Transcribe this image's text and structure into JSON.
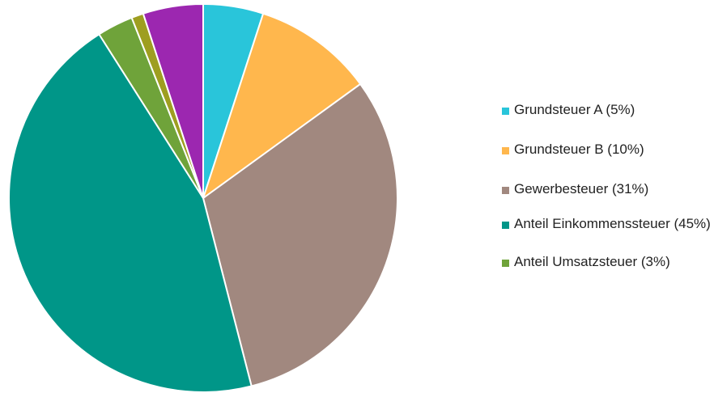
{
  "chart_data": {
    "type": "pie",
    "title": "",
    "slices": [
      {
        "label": "Grundsteuer A (5%)",
        "value": 5,
        "color": "#29C5DA",
        "in_legend": true
      },
      {
        "label": "Grundsteuer B (10%)",
        "value": 10,
        "color": "#FFB74D",
        "in_legend": true
      },
      {
        "label": "Gewerbesteuer (31%)",
        "value": 31,
        "color": "#A1887F",
        "in_legend": true
      },
      {
        "label": "Anteil Einkommenssteuer (45%)",
        "value": 45,
        "color": "#009688",
        "in_legend": true
      },
      {
        "label": "Anteil Umsatzsteuer (3%)",
        "value": 3,
        "color": "#6FA33A",
        "in_legend": true
      },
      {
        "label": "",
        "value": 1,
        "color": "#9E9E20",
        "in_legend": false
      },
      {
        "label": "",
        "value": 5,
        "color": "#9C27B0",
        "in_legend": false
      }
    ],
    "start_angle": "12 o'clock",
    "direction": "clockwise",
    "legend_position": "right"
  }
}
